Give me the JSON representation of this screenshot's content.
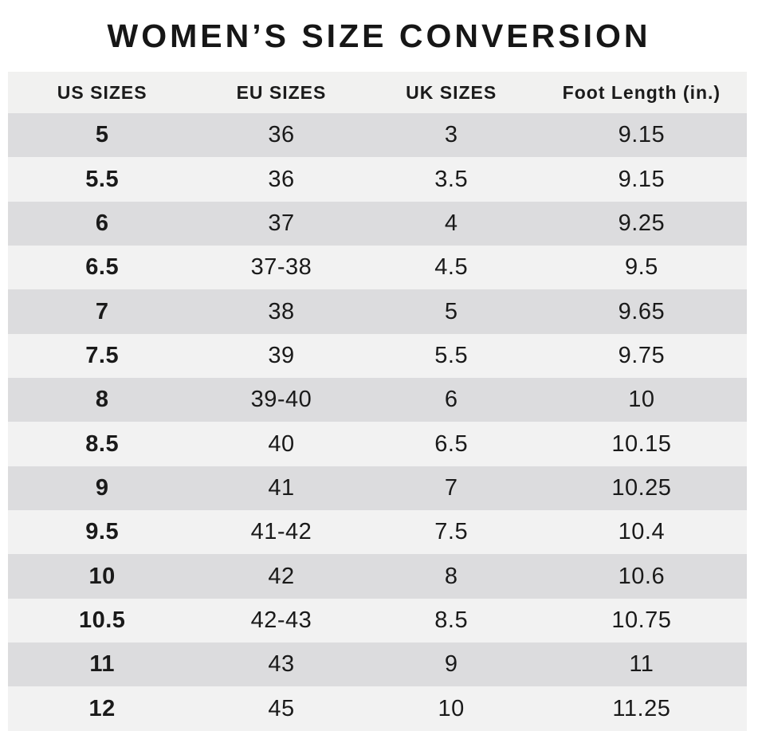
{
  "title": "WOMEN’S SIZE CONVERSION",
  "chart_data": {
    "type": "table",
    "title": "WOMEN’S SIZE CONVERSION",
    "columns": [
      "US SIZES",
      "EU SIZES",
      "UK SIZES",
      "Foot Length (in.)"
    ],
    "rows": [
      [
        "5",
        "36",
        "3",
        "9.15"
      ],
      [
        "5.5",
        "36",
        "3.5",
        "9.15"
      ],
      [
        "6",
        "37",
        "4",
        "9.25"
      ],
      [
        "6.5",
        "37-38",
        "4.5",
        "9.5"
      ],
      [
        "7",
        "38",
        "5",
        "9.65"
      ],
      [
        "7.5",
        "39",
        "5.5",
        "9.75"
      ],
      [
        "8",
        "39-40",
        "6",
        "10"
      ],
      [
        "8.5",
        "40",
        "6.5",
        "10.15"
      ],
      [
        "9",
        "41",
        "7",
        "10.25"
      ],
      [
        "9.5",
        "41-42",
        "7.5",
        "10.4"
      ],
      [
        "10",
        "42",
        "8",
        "10.6"
      ],
      [
        "10.5",
        "42-43",
        "8.5",
        "10.75"
      ],
      [
        "11",
        "43",
        "9",
        "11"
      ],
      [
        "12",
        "45",
        "10",
        "11.25"
      ]
    ],
    "layout": {
      "row_striping": "starts-dark-alternating",
      "grid": "off",
      "legend": "none"
    }
  },
  "colors": {
    "background": "#ffffff",
    "header_bg": "#f1f1f0",
    "row_dark": "#dcdcde",
    "row_light": "#f2f2f2",
    "text": "#1a1a1a"
  }
}
